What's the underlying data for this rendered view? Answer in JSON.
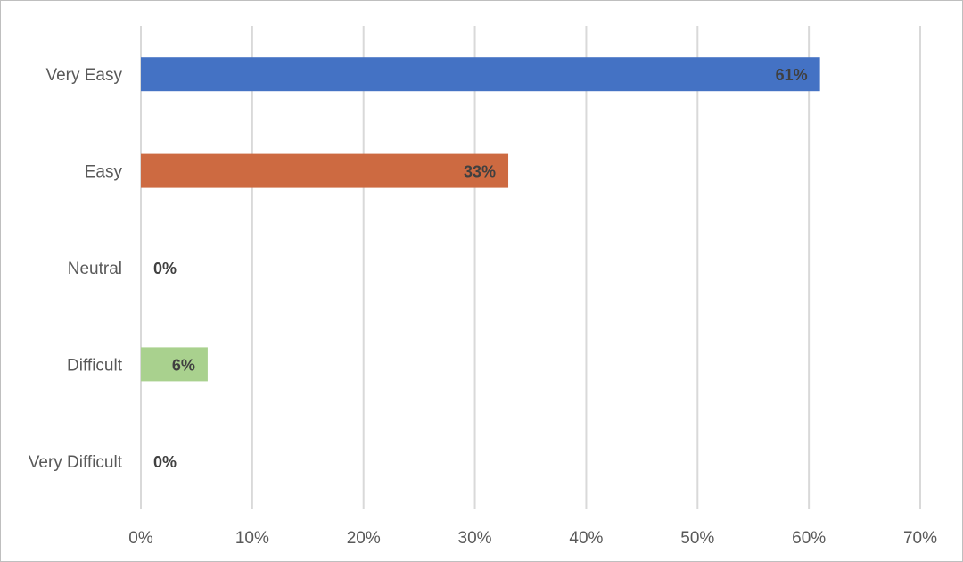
{
  "chart_data": {
    "type": "bar",
    "orientation": "horizontal",
    "categories": [
      "Very Easy",
      "Easy",
      "Neutral",
      "Difficult",
      "Very Difficult"
    ],
    "values": [
      61,
      33,
      0,
      6,
      0
    ],
    "data_labels": [
      "61%",
      "33%",
      "0%",
      "6%",
      "0%"
    ],
    "colors": [
      "#4472C4",
      "#CD6A41",
      "#A5A5A5",
      "#A9D18E",
      "#5B9BD5"
    ],
    "xlim": [
      0,
      70
    ],
    "x_ticks": [
      0,
      10,
      20,
      30,
      40,
      50,
      60,
      70
    ],
    "x_tick_labels": [
      "0%",
      "10%",
      "20%",
      "30%",
      "40%",
      "50%",
      "60%",
      "70%"
    ],
    "grid": true,
    "legend": "none",
    "title": "",
    "xlabel": "",
    "ylabel": ""
  }
}
